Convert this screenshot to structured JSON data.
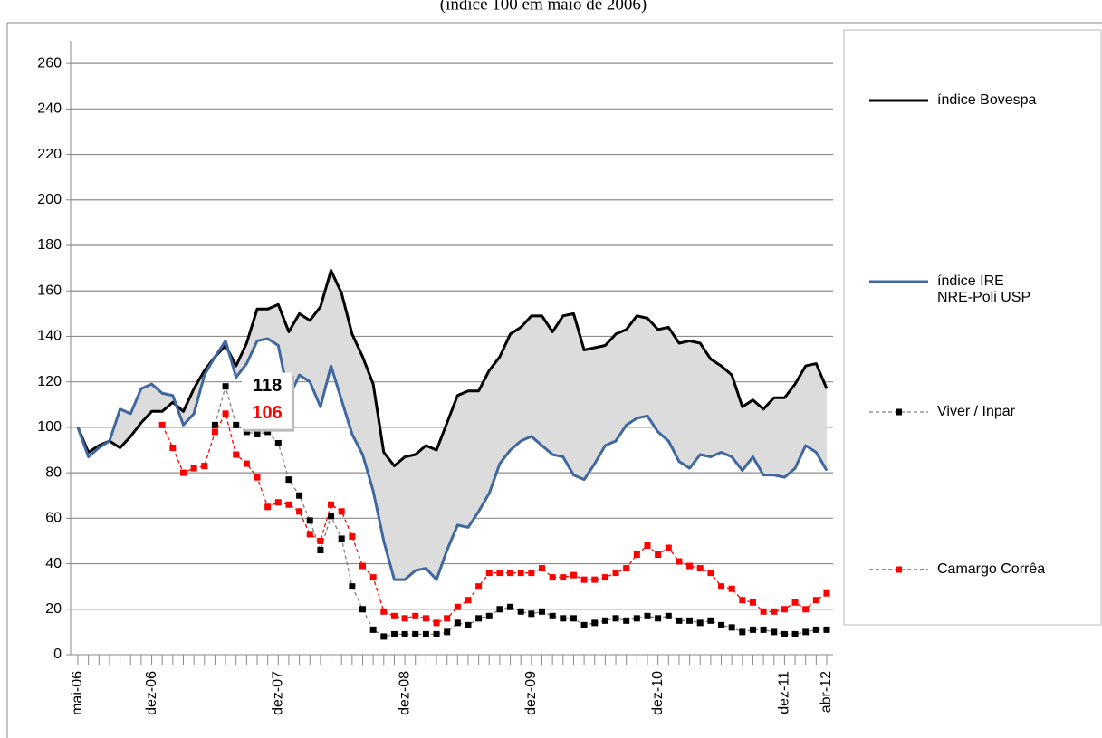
{
  "chart_data": {
    "type": "line",
    "subtitle": "(índice 100 em maio de 2006)",
    "categories": [
      "mai-06",
      null,
      null,
      null,
      null,
      null,
      null,
      "dez-06",
      null,
      null,
      null,
      null,
      null,
      null,
      null,
      null,
      null,
      null,
      null,
      "dez-07",
      null,
      null,
      null,
      null,
      null,
      null,
      null,
      null,
      null,
      null,
      null,
      "dez-08",
      null,
      null,
      null,
      null,
      null,
      null,
      null,
      null,
      null,
      null,
      null,
      "dez-09",
      null,
      null,
      null,
      null,
      null,
      null,
      null,
      null,
      null,
      null,
      null,
      "dez-10",
      null,
      null,
      null,
      null,
      null,
      null,
      null,
      null,
      null,
      null,
      null,
      "dez-11",
      null,
      null,
      null,
      "abr-12"
    ],
    "ylim": [
      0,
      270
    ],
    "yticks": [
      0,
      20,
      40,
      60,
      80,
      100,
      120,
      140,
      160,
      180,
      200,
      220,
      240,
      260
    ],
    "grid": true,
    "band": {
      "between": [
        0,
        1
      ],
      "color": "#dcdcdc"
    },
    "series": [
      {
        "name": "índice Bovespa",
        "color": "#000000",
        "width": 3,
        "values": [
          100,
          89,
          92,
          94,
          91,
          96,
          102,
          107,
          107,
          111,
          107,
          117,
          125,
          131,
          136,
          127,
          137,
          152,
          152,
          154,
          142,
          150,
          147,
          153,
          169,
          159,
          141,
          131,
          119,
          89,
          83,
          87,
          88,
          92,
          90,
          102,
          114,
          116,
          116,
          125,
          131,
          141,
          144,
          149,
          149,
          142,
          149,
          150,
          134,
          135,
          136,
          141,
          143,
          149,
          148,
          143,
          144,
          137,
          138,
          137,
          130,
          127,
          123,
          109,
          112,
          108,
          113,
          113,
          119,
          127,
          128,
          117
        ]
      },
      {
        "name": "índice IRE\nNRE-Poli USP",
        "color": "#3f67a0",
        "width": 3,
        "values": [
          100,
          87,
          91,
          94,
          108,
          106,
          117,
          119,
          115,
          114,
          101,
          106,
          123,
          131,
          138,
          122,
          128,
          138,
          139,
          136,
          113,
          123,
          120,
          109,
          127,
          112,
          97,
          88,
          72,
          50,
          33,
          33,
          37,
          38,
          33,
          46,
          57,
          56,
          63,
          71,
          84,
          90,
          94,
          96,
          92,
          88,
          87,
          79,
          77,
          84,
          92,
          94,
          101,
          104,
          105,
          98,
          94,
          85,
          82,
          88,
          87,
          89,
          87,
          81,
          87,
          79,
          79,
          78,
          82,
          92,
          89,
          81
        ]
      },
      {
        "name": "Viver / Inpar",
        "color": "#000000",
        "line_color": "#808080",
        "dashed": true,
        "marker": "square",
        "label_points": [
          14
        ],
        "values": [
          null,
          null,
          null,
          null,
          null,
          null,
          null,
          null,
          null,
          null,
          null,
          null,
          null,
          101,
          118,
          101,
          98,
          97,
          98,
          93,
          77,
          70,
          59,
          46,
          61,
          51,
          30,
          20,
          11,
          8,
          9,
          9,
          9,
          9,
          9,
          10,
          14,
          13,
          16,
          17,
          20,
          21,
          19,
          18,
          19,
          17,
          16,
          16,
          13,
          14,
          15,
          16,
          15,
          16,
          17,
          16,
          17,
          15,
          15,
          14,
          15,
          13,
          12,
          10,
          11,
          11,
          10,
          9,
          9,
          10,
          11,
          11
        ]
      },
      {
        "name": "Camargo Corrêa",
        "color": "#ff0000",
        "line_color": "#ff0000",
        "dashed": true,
        "marker": "square",
        "label_points": [
          14
        ],
        "values": [
          null,
          null,
          null,
          null,
          null,
          null,
          null,
          null,
          101,
          91,
          80,
          82,
          83,
          98,
          106,
          88,
          84,
          78,
          65,
          67,
          66,
          63,
          53,
          50,
          66,
          63,
          52,
          39,
          34,
          19,
          17,
          16,
          17,
          16,
          14,
          16,
          21,
          24,
          30,
          36,
          36,
          36,
          36,
          36,
          38,
          34,
          34,
          35,
          33,
          33,
          34,
          36,
          38,
          44,
          48,
          44,
          47,
          41,
          39,
          38,
          36,
          30,
          29,
          24,
          23,
          19,
          19,
          20,
          23,
          20,
          24,
          27
        ]
      }
    ]
  }
}
